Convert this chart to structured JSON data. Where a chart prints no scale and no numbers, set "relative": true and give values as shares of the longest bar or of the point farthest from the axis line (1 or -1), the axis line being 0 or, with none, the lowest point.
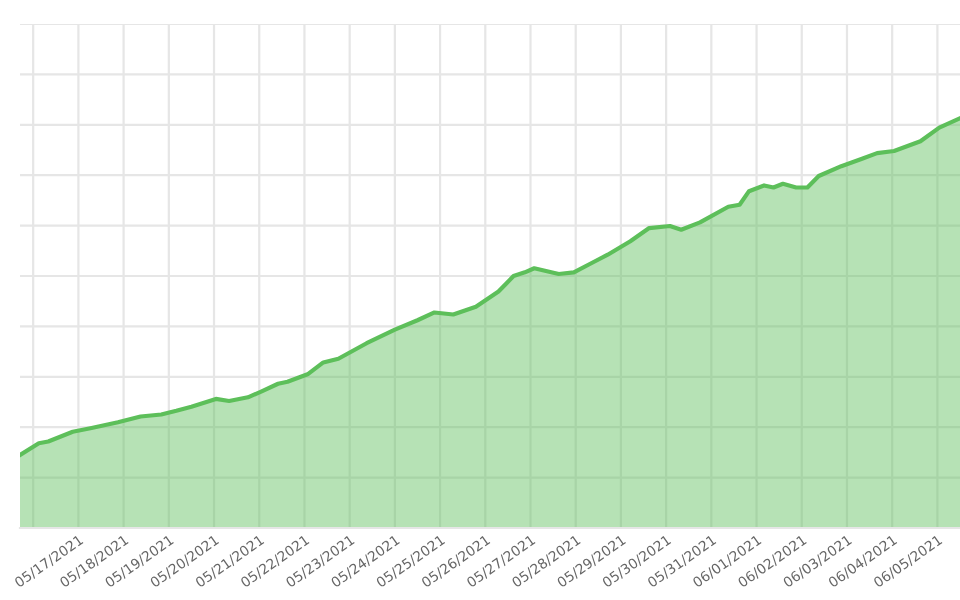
{
  "chart_data": {
    "type": "area",
    "relative": true,
    "grid": true,
    "line_style": "solid",
    "x": [
      "2021-05-15T17:00",
      "2021-05-16T03:00",
      "2021-05-16T08:00",
      "2021-05-16T21:00",
      "2021-05-17T07:00",
      "2021-05-17T21:00",
      "2021-05-18T09:00",
      "2021-05-18T20:00",
      "2021-05-19T04:00",
      "2021-05-19T12:00",
      "2021-05-20T01:00",
      "2021-05-20T08:00",
      "2021-05-20T18:00",
      "2021-05-21T01:00",
      "2021-05-21T10:00",
      "2021-05-21T15:00",
      "2021-05-22T02:00",
      "2021-05-22T10:00",
      "2021-05-22T18:00",
      "2021-05-23T09:00",
      "2021-05-24T00:00",
      "2021-05-24T12:00",
      "2021-05-24T21:00",
      "2021-05-25T07:00",
      "2021-05-25T19:00",
      "2021-05-26T07:00",
      "2021-05-26T15:00",
      "2021-05-26T21:00",
      "2021-05-27T02:00",
      "2021-05-27T15:00",
      "2021-05-27T23:00",
      "2021-05-28T09:00",
      "2021-05-28T17:00",
      "2021-05-29T05:00",
      "2021-05-29T15:00",
      "2021-05-30T02:00",
      "2021-05-30T08:00",
      "2021-05-30T18:00",
      "2021-05-31T09:00",
      "2021-05-31T15:00",
      "2021-05-31T20:00",
      "2021-06-01T04:00",
      "2021-06-01T09:00",
      "2021-06-01T14:00",
      "2021-06-01T21:00",
      "2021-06-02T03:00",
      "2021-06-02T09:00",
      "2021-06-02T21:00",
      "2021-06-03T08:00",
      "2021-06-03T16:00",
      "2021-06-04T01:00",
      "2021-06-04T15:00",
      "2021-06-05T01:00",
      "2021-06-05T12:00"
    ],
    "series": [
      {
        "color": "#5dbf5a",
        "values": [
          0.178,
          0.207,
          0.211,
          0.235,
          0.244,
          0.258,
          0.272,
          0.277,
          0.286,
          0.296,
          0.315,
          0.31,
          0.319,
          0.333,
          0.352,
          0.357,
          0.376,
          0.404,
          0.413,
          0.451,
          0.484,
          0.507,
          0.526,
          0.521,
          0.54,
          0.577,
          0.615,
          0.624,
          0.634,
          0.62,
          0.624,
          0.648,
          0.667,
          0.7,
          0.732,
          0.737,
          0.728,
          0.746,
          0.784,
          0.789,
          0.822,
          0.836,
          0.831,
          0.84,
          0.831,
          0.831,
          0.859,
          0.883,
          0.901,
          0.915,
          0.92,
          0.944,
          0.977,
          1
        ]
      }
    ],
    "xlim": [
      "2021-05-15T17:00",
      "2021-06-05T12:00"
    ],
    "xticks": [
      {
        "value": "2021-05-16",
        "label": null
      },
      {
        "value": "2021-05-17",
        "label": "05/17/2021"
      },
      {
        "value": "2021-05-18",
        "label": "05/18/2021"
      },
      {
        "value": "2021-05-19",
        "label": "05/19/2021"
      },
      {
        "value": "2021-05-20",
        "label": "05/20/2021"
      },
      {
        "value": "2021-05-21",
        "label": "05/21/2021"
      },
      {
        "value": "2021-05-22",
        "label": "05/22/2021"
      },
      {
        "value": "2021-05-23",
        "label": "05/23/2021"
      },
      {
        "value": "2021-05-24",
        "label": "05/24/2021"
      },
      {
        "value": "2021-05-25",
        "label": "05/25/2021"
      },
      {
        "value": "2021-05-26",
        "label": "05/26/2021"
      },
      {
        "value": "2021-05-27",
        "label": "05/27/2021"
      },
      {
        "value": "2021-05-28",
        "label": "05/28/2021"
      },
      {
        "value": "2021-05-29",
        "label": "05/29/2021"
      },
      {
        "value": "2021-05-30",
        "label": "05/30/2021"
      },
      {
        "value": "2021-05-31",
        "label": "05/31/2021"
      },
      {
        "value": "2021-06-01",
        "label": "06/01/2021"
      },
      {
        "value": "2021-06-02",
        "label": "06/02/2021"
      },
      {
        "value": "2021-06-03",
        "label": "06/03/2021"
      },
      {
        "value": "2021-06-04",
        "label": "06/04/2021"
      },
      {
        "value": "2021-06-05",
        "label": "06/05/2021"
      }
    ]
  }
}
